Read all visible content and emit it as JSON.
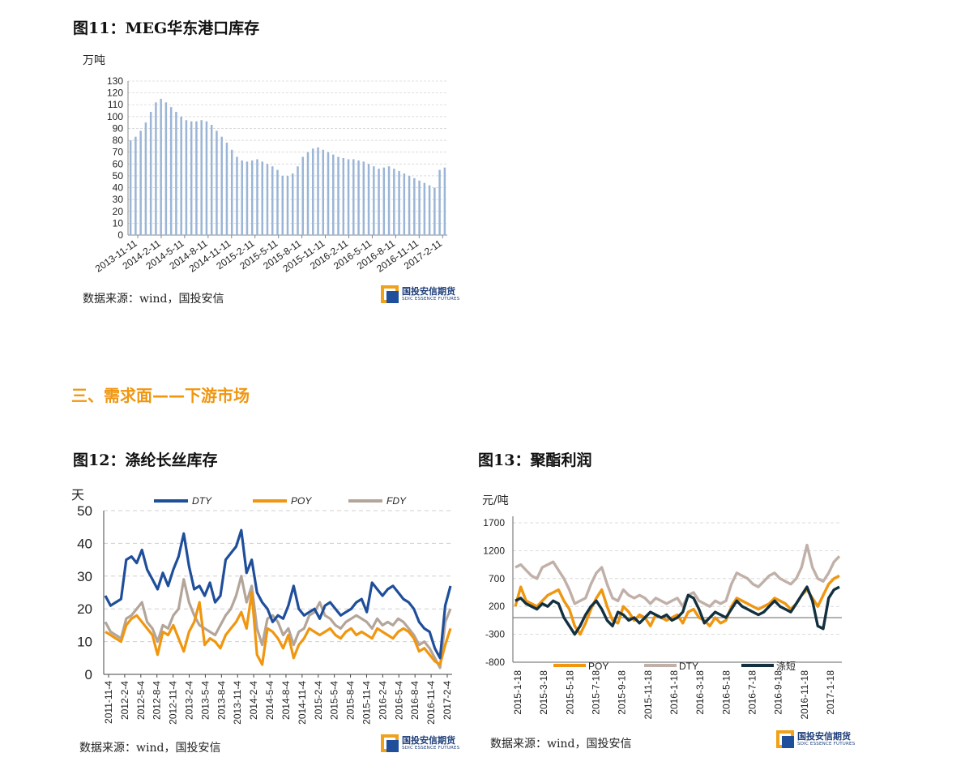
{
  "section_title": "三、需求面——下游市场",
  "logo": {
    "cn": "国投安信期货",
    "en": "SDIC ESSENCE FUTURES"
  },
  "colors": {
    "bar": "#9bb5d6",
    "dty": "#1f4e9a",
    "poy": "#f0960f",
    "fdy": "#b3a59a",
    "pet_dty": "#c0b0a8",
    "pet_short": "#12303f",
    "section": "#f0960f"
  },
  "fig11": {
    "title": "图11：MEG华东港口库存",
    "unit": "万吨",
    "source": "数据来源：wind，国投安信"
  },
  "fig12": {
    "title": "图12：涤纶长丝库存",
    "unit": "天",
    "source": "数据来源：wind，国投安信"
  },
  "fig13": {
    "title": "图13：聚酯利润",
    "unit": "元/吨",
    "source": "数据来源：wind，国投安信"
  },
  "chart_data": [
    {
      "id": "fig11",
      "type": "bar",
      "title": "图11：MEG华东港口库存",
      "ylabel": "万吨",
      "ylim": [
        0,
        130
      ],
      "yticks": [
        0,
        10,
        20,
        30,
        40,
        50,
        60,
        70,
        80,
        90,
        100,
        110,
        120,
        130
      ],
      "grid": true,
      "x_tick_labels": [
        "2013-11-11",
        "2014-2-11",
        "2014-5-11",
        "2014-8-11",
        "2014-11-11",
        "2015-2-11",
        "2015-5-11",
        "2015-8-11",
        "2015-11-11",
        "2016-2-11",
        "2016-5-11",
        "2016-8-11",
        "2016-11-11",
        "2017-2-11"
      ],
      "series": [
        {
          "values": [
            80,
            83,
            88,
            95,
            104,
            112,
            115,
            112,
            108,
            104,
            100,
            97,
            96,
            96,
            97,
            96,
            93,
            88,
            83,
            78,
            72,
            66,
            63,
            62,
            63,
            64,
            62,
            60,
            58,
            55,
            50,
            50,
            52,
            58,
            66,
            70,
            73,
            74,
            72,
            70,
            68,
            66,
            65,
            64,
            64,
            63,
            62,
            60,
            58,
            56,
            57,
            58,
            56,
            54,
            52,
            50,
            48,
            46,
            44,
            42,
            40,
            55,
            57
          ]
        }
      ]
    },
    {
      "id": "fig12",
      "type": "line",
      "title": "图12：涤纶长丝库存",
      "ylabel": "天",
      "ylim": [
        0,
        50
      ],
      "yticks": [
        0,
        10,
        20,
        30,
        40,
        50
      ],
      "grid": true,
      "legend": "top",
      "x_tick_labels": [
        "2011-11-4",
        "2012-2-4",
        "2012-5-4",
        "2012-8-4",
        "2012-11-4",
        "2013-2-4",
        "2013-5-4",
        "2013-8-4",
        "2013-11-4",
        "2014-2-4",
        "2014-5-4",
        "2014-8-4",
        "2014-11-4",
        "2015-2-4",
        "2015-5-4",
        "2015-8-4",
        "2015-11-4",
        "2016-2-4",
        "2016-5-4",
        "2016-8-4",
        "2016-11-4",
        "2017-2-4"
      ],
      "series": [
        {
          "name": "DTY",
          "values": [
            24,
            21,
            22,
            23,
            35,
            36,
            34,
            38,
            32,
            29,
            26,
            31,
            27,
            32,
            36,
            43,
            33,
            26,
            27,
            24,
            28,
            22,
            24,
            35,
            37,
            39,
            44,
            31,
            35,
            25,
            22,
            20,
            16,
            18,
            17,
            21,
            27,
            20,
            18,
            19,
            20,
            17,
            21,
            22,
            20,
            18,
            19,
            20,
            22,
            23,
            19,
            28,
            26,
            24,
            26,
            27,
            25,
            23,
            22,
            20,
            16,
            14,
            13,
            8,
            5,
            21,
            27
          ]
        },
        {
          "name": "POY",
          "values": [
            13,
            12,
            11,
            10,
            15,
            17,
            18,
            16,
            14,
            12,
            6,
            13,
            12,
            15,
            11,
            7,
            13,
            16,
            22,
            9,
            11,
            10,
            8,
            12,
            14,
            16,
            19,
            14,
            25,
            6,
            3,
            14,
            13,
            11,
            8,
            12,
            5,
            9,
            11,
            14,
            13,
            12,
            13,
            14,
            12,
            11,
            13,
            14,
            12,
            13,
            12,
            11,
            14,
            13,
            12,
            11,
            13,
            14,
            13,
            11,
            7,
            8,
            6,
            4,
            3,
            9,
            14
          ]
        },
        {
          "name": "FDY",
          "values": [
            16,
            13,
            12,
            11,
            17,
            18,
            20,
            22,
            16,
            14,
            10,
            15,
            14,
            18,
            20,
            29,
            22,
            18,
            15,
            14,
            13,
            12,
            15,
            18,
            20,
            24,
            30,
            22,
            27,
            14,
            9,
            17,
            18,
            16,
            12,
            14,
            9,
            13,
            14,
            18,
            19,
            22,
            18,
            17,
            15,
            14,
            16,
            17,
            18,
            17,
            16,
            14,
            17,
            15,
            16,
            15,
            17,
            16,
            14,
            12,
            9,
            10,
            8,
            5,
            2,
            16,
            20
          ]
        }
      ]
    },
    {
      "id": "fig13",
      "type": "line",
      "title": "图13：聚酯利润",
      "ylabel": "元/吨",
      "ylim": [
        -800,
        1700
      ],
      "yticks": [
        -800,
        -300,
        200,
        700,
        1200,
        1700
      ],
      "grid": true,
      "legend": "bottom",
      "x_tick_labels": [
        "2015-1-18",
        "2015-3-18",
        "2015-5-18",
        "2015-7-18",
        "2015-9-18",
        "2015-11-18",
        "2016-1-18",
        "2016-3-18",
        "2016-5-18",
        "2016-7-18",
        "2016-9-18",
        "2016-11-18",
        "2017-1-18"
      ],
      "series": [
        {
          "name": "POY",
          "values": [
            200,
            550,
            300,
            250,
            200,
            300,
            400,
            450,
            500,
            300,
            150,
            -150,
            -300,
            -100,
            150,
            350,
            500,
            200,
            -50,
            -100,
            200,
            100,
            -50,
            50,
            0,
            -150,
            50,
            0,
            -50,
            0,
            50,
            -100,
            100,
            150,
            0,
            -50,
            -150,
            0,
            -100,
            -50,
            200,
            350,
            300,
            250,
            200,
            150,
            200,
            250,
            350,
            300,
            250,
            150,
            250,
            400,
            500,
            350,
            200,
            400,
            600,
            700,
            750
          ]
        },
        {
          "name": "DTY",
          "values": [
            900,
            950,
            850,
            750,
            700,
            900,
            950,
            1000,
            850,
            700,
            500,
            250,
            300,
            350,
            600,
            800,
            900,
            600,
            350,
            300,
            500,
            400,
            350,
            400,
            350,
            250,
            350,
            300,
            250,
            300,
            350,
            200,
            400,
            450,
            300,
            250,
            200,
            300,
            250,
            300,
            600,
            800,
            750,
            700,
            600,
            550,
            650,
            750,
            800,
            700,
            650,
            600,
            700,
            900,
            1300,
            900,
            700,
            650,
            800,
            1000,
            1100
          ]
        },
        {
          "name": "涤短",
          "values": [
            300,
            350,
            250,
            200,
            150,
            250,
            200,
            300,
            250,
            0,
            -150,
            -300,
            -150,
            50,
            200,
            300,
            150,
            -50,
            -150,
            100,
            50,
            -50,
            0,
            -100,
            0,
            100,
            50,
            0,
            50,
            -50,
            0,
            100,
            400,
            350,
            150,
            -100,
            0,
            100,
            50,
            0,
            150,
            300,
            200,
            150,
            100,
            50,
            100,
            200,
            300,
            200,
            150,
            100,
            250,
            400,
            550,
            300,
            -150,
            -200,
            350,
            500,
            550
          ]
        }
      ]
    }
  ]
}
